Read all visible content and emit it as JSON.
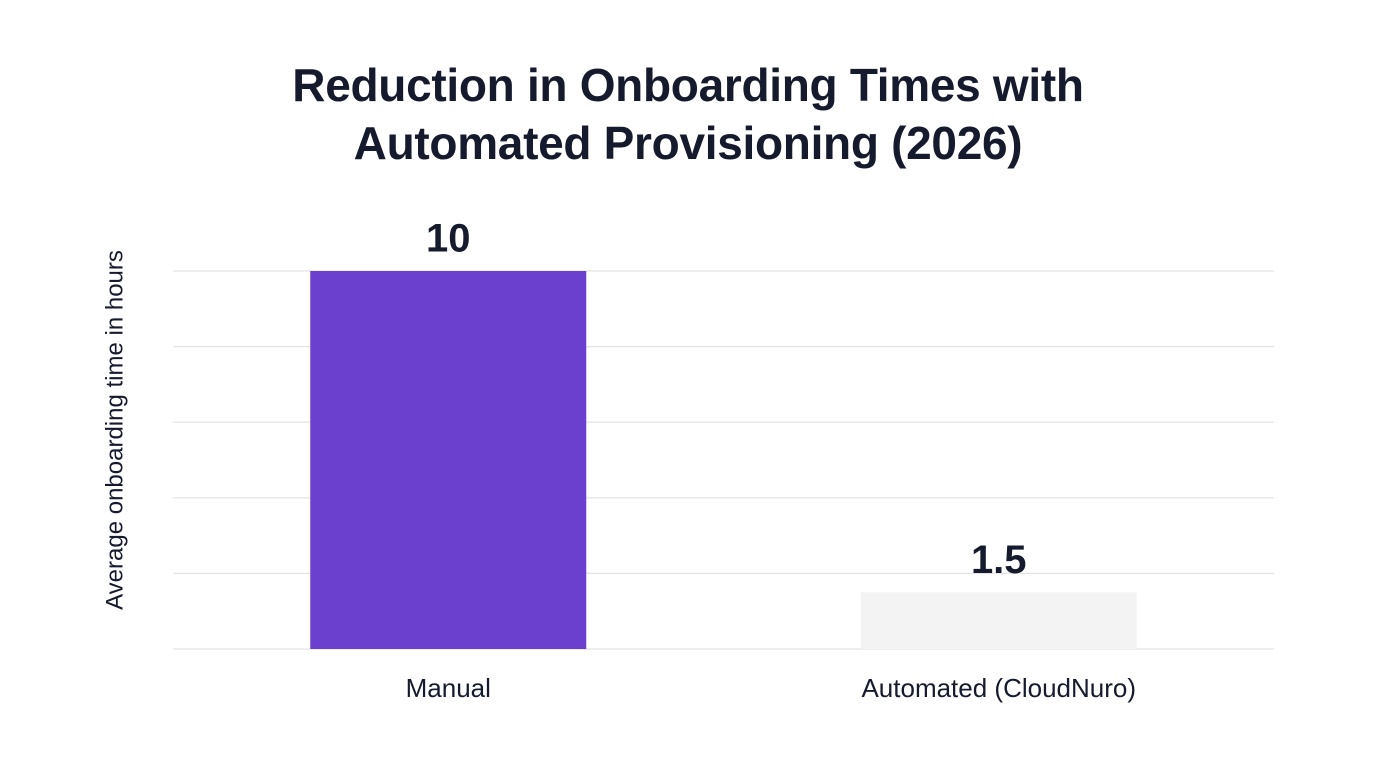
{
  "chart_data": {
    "type": "bar",
    "title": "Reduction in Onboarding Times with Automated Provisioning (2026)",
    "y_label": "Average onboarding time in hours",
    "categories": [
      "Manual",
      "Automated (CloudNuro)"
    ],
    "values": [
      10,
      1.5
    ],
    "colors": [
      "#6c40cf",
      "#f3f3f3"
    ],
    "ylim": [
      0,
      10
    ],
    "yticks": [
      0,
      2,
      4,
      6,
      8,
      10
    ],
    "grid": true
  }
}
